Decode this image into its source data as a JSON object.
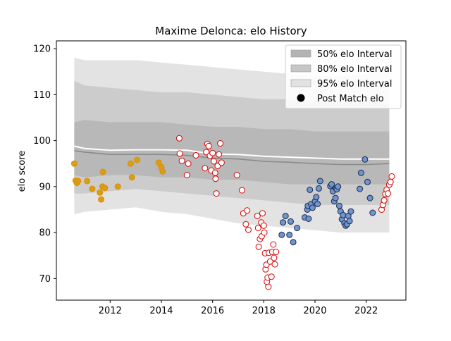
{
  "chart_data": {
    "type": "scatter",
    "title": "Maxime Delonca: elo History",
    "xlabel": "",
    "ylabel": "elo score",
    "xlim": [
      2009.9,
      2023.55
    ],
    "ylim": [
      65.3,
      121.7
    ],
    "x_ticks": [
      2012,
      2014,
      2016,
      2018,
      2020,
      2022
    ],
    "y_ticks": [
      70,
      80,
      90,
      100,
      110,
      120
    ],
    "legend_position": "top-right",
    "grid": false,
    "legend": [
      {
        "label": "50% elo Interval",
        "kind": "band",
        "color": "#b3b3b3"
      },
      {
        "label": "80% elo Interval",
        "kind": "band",
        "color": "#c6c6c6"
      },
      {
        "label": "95% elo Interval",
        "kind": "band",
        "color": "#e2e2e2"
      },
      {
        "label": "Post Match elo",
        "kind": "marker",
        "color": "#000000"
      }
    ],
    "bands": {
      "x": [
        2010.6,
        2011.0,
        2012.0,
        2013.0,
        2014.0,
        2015.0,
        2016.0,
        2017.0,
        2018.0,
        2019.0,
        2020.0,
        2021.0,
        2022.0,
        2022.9
      ],
      "p95_low": [
        84.0,
        84.5,
        85.0,
        85.5,
        84.5,
        84.0,
        83.0,
        82.0,
        81.5,
        81.0,
        80.5,
        80.0,
        80.0,
        80.0
      ],
      "p95_high": [
        118.0,
        117.5,
        117.5,
        117.5,
        117.0,
        116.5,
        116.0,
        115.5,
        115.0,
        114.5,
        114.0,
        114.0,
        114.5,
        116.5
      ],
      "p80_low": [
        88.5,
        88.5,
        89.0,
        89.5,
        89.0,
        88.5,
        88.0,
        87.5,
        87.0,
        86.5,
        86.0,
        86.0,
        86.0,
        86.0
      ],
      "p80_high": [
        113.0,
        112.0,
        111.5,
        111.0,
        110.5,
        110.5,
        110.0,
        109.5,
        109.0,
        109.0,
        108.5,
        108.5,
        108.5,
        108.0
      ],
      "p50_low": [
        92.5,
        92.0,
        92.5,
        92.5,
        92.0,
        92.0,
        91.5,
        91.5,
        91.0,
        90.5,
        90.5,
        90.5,
        90.5,
        90.5
      ],
      "p50_high": [
        104.0,
        104.5,
        104.0,
        104.0,
        104.0,
        103.5,
        103.0,
        103.0,
        102.5,
        102.5,
        102.0,
        102.0,
        102.0,
        102.0
      ],
      "median": [
        97.8,
        97.5,
        97.0,
        97.0,
        97.0,
        96.8,
        96.2,
        96.0,
        95.5,
        95.3,
        95.0,
        94.8,
        94.8,
        95.0
      ],
      "mean": [
        98.8,
        98.3,
        97.9,
        98.0,
        98.0,
        97.9,
        97.1,
        97.0,
        96.6,
        96.4,
        96.2,
        96.0,
        96.0,
        96.0
      ]
    },
    "series": [
      {
        "style": {
          "face": "#d4a017",
          "edge": "#e88a00"
        },
        "points": [
          [
            2010.6,
            95.0
          ],
          [
            2010.65,
            91.3
          ],
          [
            2010.7,
            90.8
          ],
          [
            2010.75,
            91.2
          ],
          [
            2011.1,
            91.2
          ],
          [
            2011.3,
            89.5
          ],
          [
            2011.6,
            88.7
          ],
          [
            2011.65,
            87.2
          ],
          [
            2011.7,
            90.0
          ],
          [
            2011.72,
            93.2
          ],
          [
            2011.8,
            89.7
          ],
          [
            2012.3,
            90.0
          ],
          [
            2012.8,
            95.0
          ],
          [
            2012.85,
            92.0
          ],
          [
            2013.05,
            95.8
          ],
          [
            2013.9,
            95.2
          ],
          [
            2014.0,
            94.2
          ],
          [
            2014.05,
            93.3
          ]
        ]
      },
      {
        "style": {
          "face": "#ffffff",
          "edge": "#dd0000"
        },
        "points": [
          [
            2014.7,
            100.5
          ],
          [
            2014.72,
            97.2
          ],
          [
            2014.8,
            95.6
          ],
          [
            2015.0,
            92.5
          ],
          [
            2015.05,
            95.0
          ],
          [
            2015.35,
            96.8
          ],
          [
            2015.7,
            94.0
          ],
          [
            2015.75,
            97.5
          ],
          [
            2015.8,
            99.3
          ],
          [
            2015.85,
            98.8
          ],
          [
            2015.9,
            96.7
          ],
          [
            2015.95,
            93.5
          ],
          [
            2016.0,
            97.3
          ],
          [
            2016.05,
            95.5
          ],
          [
            2016.1,
            93.0
          ],
          [
            2016.12,
            91.7
          ],
          [
            2016.15,
            88.5
          ],
          [
            2016.2,
            94.5
          ],
          [
            2016.25,
            97.0
          ],
          [
            2016.3,
            99.4
          ],
          [
            2016.35,
            95.2
          ],
          [
            2016.95,
            92.5
          ],
          [
            2017.15,
            89.2
          ],
          [
            2017.2,
            84.2
          ],
          [
            2017.3,
            81.8
          ],
          [
            2017.35,
            84.8
          ],
          [
            2017.4,
            80.6
          ],
          [
            2017.75,
            83.6
          ],
          [
            2017.78,
            81.0
          ],
          [
            2017.8,
            76.9
          ],
          [
            2017.85,
            78.6
          ],
          [
            2017.9,
            82.2
          ],
          [
            2017.92,
            79.2
          ],
          [
            2017.95,
            84.2
          ],
          [
            2018.0,
            81.5
          ],
          [
            2018.02,
            80.0
          ],
          [
            2018.05,
            75.5
          ],
          [
            2018.07,
            72.0
          ],
          [
            2018.1,
            73.0
          ],
          [
            2018.12,
            69.3
          ],
          [
            2018.15,
            70.2
          ],
          [
            2018.18,
            68.2
          ],
          [
            2018.2,
            75.6
          ],
          [
            2018.25,
            73.7
          ],
          [
            2018.3,
            70.4
          ],
          [
            2018.33,
            75.8
          ],
          [
            2018.37,
            77.4
          ],
          [
            2018.4,
            74.5
          ],
          [
            2018.43,
            73.1
          ],
          [
            2018.48,
            75.8
          ],
          [
            2022.6,
            85.0
          ],
          [
            2022.65,
            86.0
          ],
          [
            2022.7,
            87.0
          ],
          [
            2022.75,
            88.4
          ],
          [
            2022.8,
            89.3
          ],
          [
            2022.85,
            88.5
          ],
          [
            2022.9,
            90.4
          ],
          [
            2022.95,
            91.0
          ],
          [
            2023.0,
            92.2
          ]
        ]
      },
      {
        "style": {
          "face": "#6f95cc",
          "edge": "#1c2a50"
        },
        "points": [
          [
            2018.7,
            79.5
          ],
          [
            2018.75,
            82.2
          ],
          [
            2018.85,
            83.6
          ],
          [
            2019.0,
            79.5
          ],
          [
            2019.05,
            82.4
          ],
          [
            2019.15,
            77.9
          ],
          [
            2019.3,
            81.0
          ],
          [
            2019.6,
            83.3
          ],
          [
            2019.7,
            85.0
          ],
          [
            2019.72,
            85.8
          ],
          [
            2019.75,
            83.0
          ],
          [
            2019.8,
            89.3
          ],
          [
            2019.85,
            86.2
          ],
          [
            2019.9,
            85.4
          ],
          [
            2020.0,
            86.8
          ],
          [
            2020.05,
            87.7
          ],
          [
            2020.1,
            86.2
          ],
          [
            2020.15,
            89.6
          ],
          [
            2020.2,
            91.2
          ],
          [
            2020.6,
            90.1
          ],
          [
            2020.65,
            90.5
          ],
          [
            2020.7,
            89.0
          ],
          [
            2020.75,
            86.8
          ],
          [
            2020.8,
            87.5
          ],
          [
            2020.82,
            89.6
          ],
          [
            2020.85,
            89.4
          ],
          [
            2020.9,
            90.0
          ],
          [
            2020.95,
            85.8
          ],
          [
            2021.0,
            84.6
          ],
          [
            2021.05,
            82.9
          ],
          [
            2021.1,
            83.8
          ],
          [
            2021.15,
            82.0
          ],
          [
            2021.2,
            81.5
          ],
          [
            2021.25,
            81.8
          ],
          [
            2021.3,
            83.6
          ],
          [
            2021.35,
            82.5
          ],
          [
            2021.4,
            84.6
          ],
          [
            2021.75,
            89.5
          ],
          [
            2021.8,
            93.0
          ],
          [
            2021.95,
            95.9
          ],
          [
            2022.05,
            91.0
          ],
          [
            2022.15,
            87.5
          ],
          [
            2022.25,
            84.3
          ]
        ]
      }
    ]
  }
}
